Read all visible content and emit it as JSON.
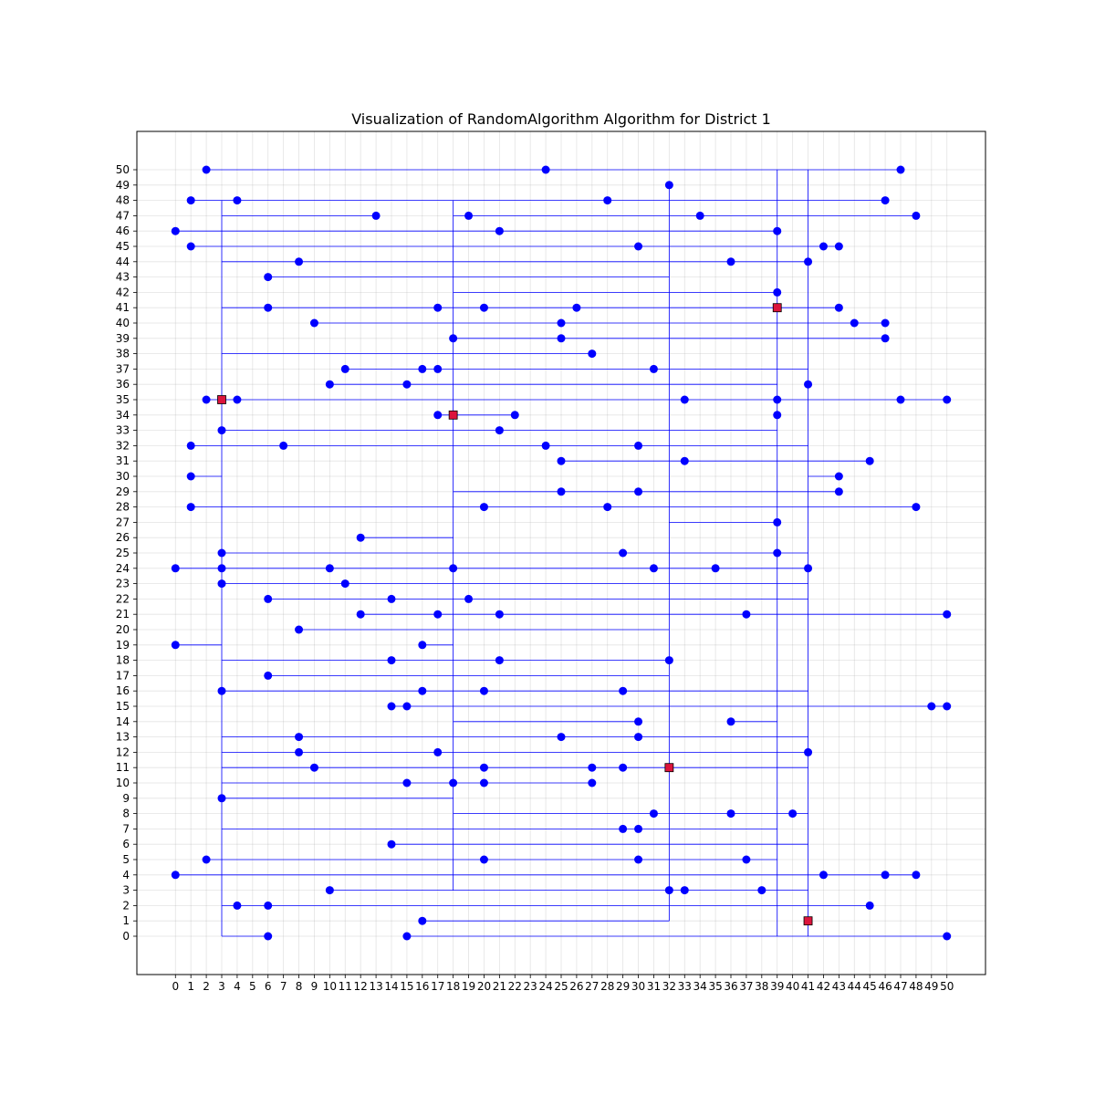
{
  "chart_data": {
    "type": "scatter",
    "title": "Visualization of RandomAlgorithm Algorithm for District 1",
    "xlabel": "",
    "ylabel": "",
    "xlim": [
      -2.5,
      52.5
    ],
    "ylim": [
      -2.5,
      52.5
    ],
    "grid": true,
    "x_ticks": [
      0,
      1,
      2,
      3,
      4,
      5,
      6,
      7,
      8,
      9,
      10,
      11,
      12,
      13,
      14,
      15,
      16,
      17,
      18,
      19,
      20,
      21,
      22,
      23,
      24,
      25,
      26,
      27,
      28,
      29,
      30,
      31,
      32,
      33,
      34,
      35,
      36,
      37,
      38,
      39,
      40,
      41,
      42,
      43,
      44,
      45,
      46,
      47,
      48,
      49,
      50
    ],
    "y_ticks": [
      0,
      1,
      2,
      3,
      4,
      5,
      6,
      7,
      8,
      9,
      10,
      11,
      12,
      13,
      14,
      15,
      16,
      17,
      18,
      19,
      20,
      21,
      22,
      23,
      24,
      25,
      26,
      27,
      28,
      29,
      30,
      31,
      32,
      33,
      34,
      35,
      36,
      37,
      38,
      39,
      40,
      41,
      42,
      43,
      44,
      45,
      46,
      47,
      48,
      49,
      50
    ],
    "colors": {
      "house": "#0000ff",
      "battery": "#dc143c",
      "cable": "#0000ff"
    },
    "batteries": [
      [
        3,
        35
      ],
      [
        18,
        34
      ],
      [
        39,
        41
      ],
      [
        32,
        11
      ],
      [
        41,
        1
      ]
    ],
    "houses": [
      [
        2,
        50
      ],
      [
        24,
        50
      ],
      [
        47,
        50
      ],
      [
        32,
        49
      ],
      [
        1,
        48
      ],
      [
        4,
        48
      ],
      [
        28,
        48
      ],
      [
        46,
        48
      ],
      [
        13,
        47
      ],
      [
        19,
        47
      ],
      [
        34,
        47
      ],
      [
        48,
        47
      ],
      [
        0,
        46
      ],
      [
        21,
        46
      ],
      [
        39,
        46
      ],
      [
        1,
        45
      ],
      [
        30,
        45
      ],
      [
        42,
        45
      ],
      [
        43,
        45
      ],
      [
        8,
        44
      ],
      [
        36,
        44
      ],
      [
        41,
        44
      ],
      [
        6,
        43
      ],
      [
        39,
        42
      ],
      [
        6,
        41
      ],
      [
        17,
        41
      ],
      [
        20,
        41
      ],
      [
        26,
        41
      ],
      [
        43,
        41
      ],
      [
        9,
        40
      ],
      [
        25,
        40
      ],
      [
        44,
        40
      ],
      [
        46,
        40
      ],
      [
        18,
        39
      ],
      [
        25,
        39
      ],
      [
        46,
        39
      ],
      [
        27,
        38
      ],
      [
        11,
        37
      ],
      [
        16,
        37
      ],
      [
        17,
        37
      ],
      [
        31,
        37
      ],
      [
        10,
        36
      ],
      [
        15,
        36
      ],
      [
        41,
        36
      ],
      [
        2,
        35
      ],
      [
        4,
        35
      ],
      [
        33,
        35
      ],
      [
        39,
        35
      ],
      [
        47,
        35
      ],
      [
        50,
        35
      ],
      [
        17,
        34
      ],
      [
        22,
        34
      ],
      [
        39,
        34
      ],
      [
        3,
        33
      ],
      [
        21,
        33
      ],
      [
        1,
        32
      ],
      [
        7,
        32
      ],
      [
        24,
        32
      ],
      [
        30,
        32
      ],
      [
        25,
        31
      ],
      [
        33,
        31
      ],
      [
        45,
        31
      ],
      [
        1,
        30
      ],
      [
        43,
        30
      ],
      [
        25,
        29
      ],
      [
        30,
        29
      ],
      [
        43,
        29
      ],
      [
        1,
        28
      ],
      [
        20,
        28
      ],
      [
        28,
        28
      ],
      [
        48,
        28
      ],
      [
        39,
        27
      ],
      [
        12,
        26
      ],
      [
        3,
        25
      ],
      [
        29,
        25
      ],
      [
        39,
        25
      ],
      [
        0,
        24
      ],
      [
        3,
        24
      ],
      [
        10,
        24
      ],
      [
        18,
        24
      ],
      [
        31,
        24
      ],
      [
        35,
        24
      ],
      [
        41,
        24
      ],
      [
        3,
        23
      ],
      [
        11,
        23
      ],
      [
        6,
        22
      ],
      [
        14,
        22
      ],
      [
        19,
        22
      ],
      [
        12,
        21
      ],
      [
        17,
        21
      ],
      [
        21,
        21
      ],
      [
        37,
        21
      ],
      [
        50,
        21
      ],
      [
        8,
        20
      ],
      [
        0,
        19
      ],
      [
        16,
        19
      ],
      [
        14,
        18
      ],
      [
        21,
        18
      ],
      [
        32,
        18
      ],
      [
        6,
        17
      ],
      [
        3,
        16
      ],
      [
        16,
        16
      ],
      [
        20,
        16
      ],
      [
        29,
        16
      ],
      [
        14,
        15
      ],
      [
        15,
        15
      ],
      [
        49,
        15
      ],
      [
        50,
        15
      ],
      [
        30,
        14
      ],
      [
        36,
        14
      ],
      [
        8,
        13
      ],
      [
        25,
        13
      ],
      [
        30,
        13
      ],
      [
        8,
        12
      ],
      [
        17,
        12
      ],
      [
        41,
        12
      ],
      [
        9,
        11
      ],
      [
        20,
        11
      ],
      [
        27,
        11
      ],
      [
        29,
        11
      ],
      [
        15,
        10
      ],
      [
        18,
        10
      ],
      [
        20,
        10
      ],
      [
        27,
        10
      ],
      [
        3,
        9
      ],
      [
        31,
        8
      ],
      [
        36,
        8
      ],
      [
        40,
        8
      ],
      [
        29,
        7
      ],
      [
        30,
        7
      ],
      [
        14,
        6
      ],
      [
        2,
        5
      ],
      [
        20,
        5
      ],
      [
        30,
        5
      ],
      [
        37,
        5
      ],
      [
        0,
        4
      ],
      [
        42,
        4
      ],
      [
        46,
        4
      ],
      [
        48,
        4
      ],
      [
        10,
        3
      ],
      [
        32,
        3
      ],
      [
        33,
        3
      ],
      [
        38,
        3
      ],
      [
        4,
        2
      ],
      [
        6,
        2
      ],
      [
        45,
        2
      ],
      [
        16,
        1
      ],
      [
        6,
        0
      ],
      [
        15,
        0
      ],
      [
        50,
        0
      ]
    ],
    "cables_h": [
      [
        2,
        47,
        50
      ],
      [
        1,
        4,
        48
      ],
      [
        4,
        46,
        48
      ],
      [
        3,
        13,
        47
      ],
      [
        18,
        48,
        47
      ],
      [
        0,
        39,
        46
      ],
      [
        1,
        43,
        45
      ],
      [
        3,
        41,
        44
      ],
      [
        6,
        32,
        43
      ],
      [
        18,
        39,
        42
      ],
      [
        3,
        17,
        41
      ],
      [
        17,
        43,
        41
      ],
      [
        9,
        46,
        40
      ],
      [
        18,
        46,
        39
      ],
      [
        3,
        27,
        38
      ],
      [
        11,
        41,
        37
      ],
      [
        10,
        39,
        36
      ],
      [
        2,
        50,
        35
      ],
      [
        17,
        22,
        34
      ],
      [
        3,
        39,
        33
      ],
      [
        1,
        41,
        32
      ],
      [
        25,
        45,
        31
      ],
      [
        1,
        3,
        30
      ],
      [
        41,
        43,
        30
      ],
      [
        18,
        43,
        29
      ],
      [
        1,
        18,
        28
      ],
      [
        18,
        48,
        28
      ],
      [
        32,
        39,
        27
      ],
      [
        12,
        18,
        26
      ],
      [
        3,
        41,
        25
      ],
      [
        0,
        41,
        24
      ],
      [
        3,
        41,
        23
      ],
      [
        6,
        41,
        22
      ],
      [
        12,
        50,
        21
      ],
      [
        8,
        32,
        20
      ],
      [
        0,
        3,
        19
      ],
      [
        16,
        18,
        19
      ],
      [
        3,
        32,
        18
      ],
      [
        6,
        32,
        17
      ],
      [
        3,
        41,
        16
      ],
      [
        14,
        50,
        15
      ],
      [
        18,
        30,
        14
      ],
      [
        36,
        39,
        14
      ],
      [
        3,
        41,
        13
      ],
      [
        3,
        41,
        12
      ],
      [
        3,
        41,
        11
      ],
      [
        3,
        27,
        10
      ],
      [
        3,
        18,
        9
      ],
      [
        18,
        41,
        8
      ],
      [
        3,
        39,
        7
      ],
      [
        14,
        41,
        6
      ],
      [
        2,
        39,
        5
      ],
      [
        0,
        48,
        4
      ],
      [
        10,
        41,
        3
      ],
      [
        3,
        45,
        2
      ],
      [
        16,
        32,
        1
      ],
      [
        3,
        6,
        0
      ],
      [
        15,
        50,
        0
      ]
    ],
    "cables_v": [
      [
        3,
        0,
        48
      ],
      [
        18,
        3,
        48
      ],
      [
        32,
        1,
        49
      ],
      [
        39,
        0,
        50
      ],
      [
        41,
        0,
        50
      ]
    ]
  }
}
